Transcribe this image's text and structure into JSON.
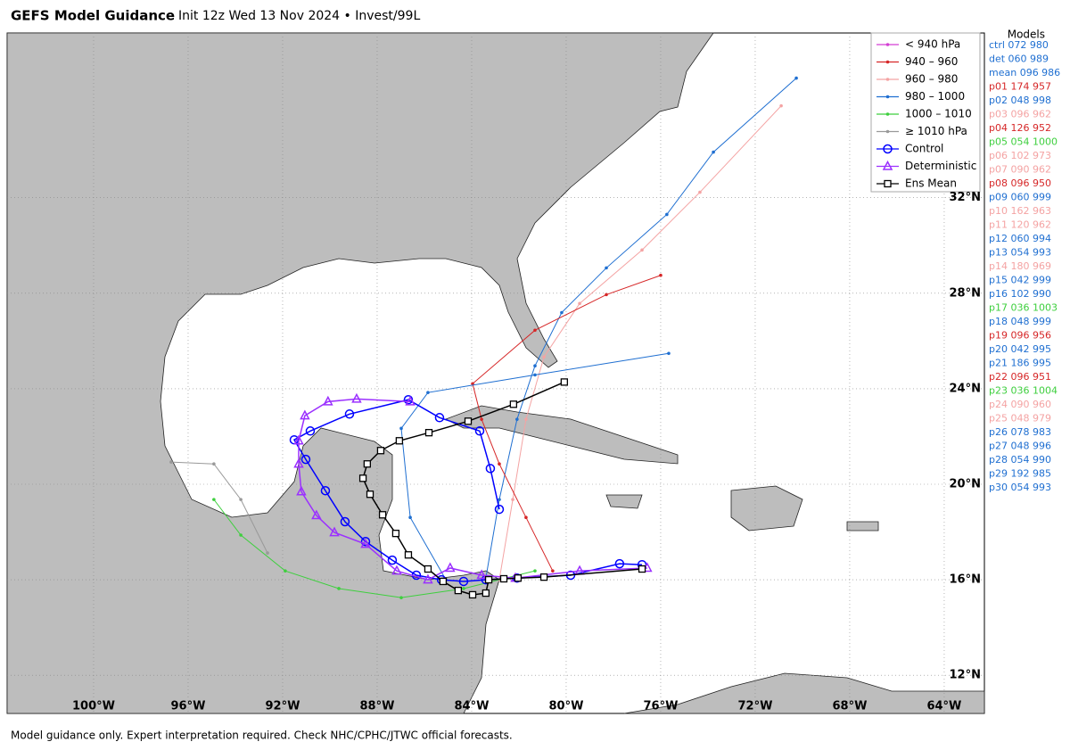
{
  "header": {
    "title": "GEFS Model Guidance",
    "subtitle": "Init 12z Wed 13 Nov 2024 • Invest/99L"
  },
  "footer": "Model guidance only. Expert interpretation required. Check NHC/CPHC/JTWC official forecasts.",
  "chart_data": {
    "type": "track-map",
    "xlim": [
      -103.66,
      -62.3
    ],
    "ylim": [
      10.4,
      38.9
    ],
    "xticks": [
      {
        "value": -100,
        "label": "100°W"
      },
      {
        "value": -96,
        "label": "96°W"
      },
      {
        "value": -92,
        "label": "92°W"
      },
      {
        "value": -88,
        "label": "88°W"
      },
      {
        "value": -84,
        "label": "84°W"
      },
      {
        "value": -80,
        "label": "80°W"
      },
      {
        "value": -76,
        "label": "76°W"
      },
      {
        "value": -72,
        "label": "72°W"
      },
      {
        "value": -68,
        "label": "68°W"
      },
      {
        "value": -64,
        "label": "64°W"
      }
    ],
    "yticks": [
      {
        "value": 12,
        "label": "12°N"
      },
      {
        "value": 16,
        "label": "16°N"
      },
      {
        "value": 20,
        "label": "20°N"
      },
      {
        "value": 24,
        "label": "24°N"
      },
      {
        "value": 28,
        "label": "28°N"
      },
      {
        "value": 32,
        "label": "32°N"
      }
    ],
    "grid": true,
    "tracks": [
      {
        "color": "#1f6fd1",
        "marker": "dot",
        "lon": [
          -83.4,
          -82.83,
          -82.08,
          -81.32,
          -80.19,
          -78.3,
          -75.74,
          -73.77,
          -70.26
        ],
        "lat": [
          16.07,
          19.36,
          22.72,
          24.96,
          27.19,
          29.06,
          31.3,
          33.91,
          37.01
        ]
      },
      {
        "color": "#f4a3a3",
        "marker": "dot",
        "lon": [
          -82.83,
          -82.26,
          -81.7,
          -80.94,
          -79.43,
          -76.79,
          -74.34,
          -70.9
        ],
        "lat": [
          16.0,
          19.36,
          22.72,
          25.33,
          27.57,
          29.81,
          32.23,
          35.85
        ]
      },
      {
        "color": "#d62728",
        "marker": "dot",
        "lon": [
          -80.57,
          -81.7,
          -82.83,
          -83.58,
          -83.96,
          -81.32,
          -78.3,
          -76.0
        ],
        "lat": [
          16.37,
          18.61,
          20.85,
          22.72,
          24.21,
          26.45,
          27.94,
          28.75
        ]
      },
      {
        "color": "#1f6fd1",
        "marker": "dot",
        "lon": [
          -85.09,
          -86.6,
          -86.98,
          -85.85,
          -81.32,
          -75.66
        ],
        "lat": [
          16.0,
          18.61,
          22.34,
          23.84,
          24.58,
          25.48
        ]
      },
      {
        "color": "#3ecf3e",
        "marker": "dot",
        "lon": [
          -81.32,
          -84.34,
          -86.98,
          -89.62,
          -91.89,
          -93.77,
          -94.91
        ],
        "lat": [
          16.37,
          15.63,
          15.25,
          15.63,
          16.37,
          17.87,
          19.36
        ]
      },
      {
        "color": "#999999",
        "marker": "dot",
        "lon": [
          -92.64,
          -93.77,
          -94.91,
          -96.72
        ],
        "lat": [
          17.12,
          19.36,
          20.85,
          20.93
        ]
      },
      {
        "color": "#0000ff",
        "marker": "circle",
        "lon": [
          -76.79,
          -77.74,
          -79.81,
          -82.08,
          -83.4,
          -84.34,
          -85.28,
          -86.34,
          -87.36,
          -88.49,
          -89.36,
          -90.19,
          -91.02,
          -91.51,
          -90.83,
          -89.17,
          -86.68,
          -85.36,
          -83.66,
          -83.21,
          -82.83
        ],
        "lat": [
          16.63,
          16.67,
          16.19,
          16.07,
          16.0,
          15.93,
          16.0,
          16.19,
          16.82,
          17.6,
          18.43,
          19.73,
          21.04,
          21.86,
          22.23,
          22.94,
          23.54,
          22.79,
          22.23,
          20.66,
          18.95
        ]
      },
      {
        "color": "#9b30ff",
        "marker": "triangle",
        "lon": [
          -76.57,
          -79.43,
          -82.15,
          -83.58,
          -84.91,
          -85.85,
          -87.17,
          -88.49,
          -89.81,
          -90.57,
          -91.21,
          -91.32,
          -91.32,
          -91.06,
          -90.08,
          -88.87,
          -86.6
        ],
        "lat": [
          16.49,
          16.37,
          16.07,
          16.19,
          16.49,
          16.0,
          16.37,
          17.49,
          17.98,
          18.69,
          19.69,
          20.85,
          21.82,
          22.87,
          23.46,
          23.57,
          23.46
        ]
      },
      {
        "color": "#000000",
        "marker": "square",
        "lon": [
          -76.79,
          -80.94,
          -82.04,
          -82.64,
          -83.28,
          -83.4,
          -83.96,
          -84.57,
          -85.21,
          -85.85,
          -86.68,
          -87.21,
          -87.77,
          -88.3,
          -88.6,
          -88.42,
          -87.85,
          -87.06,
          -85.81,
          -84.15,
          -82.23,
          -80.08
        ],
        "lat": [
          16.45,
          16.11,
          16.07,
          16.04,
          16.0,
          15.44,
          15.37,
          15.55,
          15.93,
          16.45,
          17.04,
          17.94,
          18.72,
          19.58,
          20.25,
          20.85,
          21.41,
          21.82,
          22.16,
          22.64,
          23.35,
          24.28
        ]
      }
    ]
  },
  "legend": {
    "entries": [
      {
        "label": "< 940 hPa",
        "color": "#d43fd4",
        "marker": "dot"
      },
      {
        "label": "940 – 960",
        "color": "#d62728",
        "marker": "dot"
      },
      {
        "label": "960 – 980",
        "color": "#f4a3a3",
        "marker": "dot"
      },
      {
        "label": "980 – 1000",
        "color": "#1f6fd1",
        "marker": "dot"
      },
      {
        "label": "1000 – 1010",
        "color": "#3ecf3e",
        "marker": "dot"
      },
      {
        "label": "≥ 1010 hPa",
        "color": "#999999",
        "marker": "dot"
      },
      {
        "label": "Control",
        "color": "#0000ff",
        "marker": "circle"
      },
      {
        "label": "Deterministic",
        "color": "#9b30ff",
        "marker": "triangle"
      },
      {
        "label": "Ens Mean",
        "color": "#000000",
        "marker": "square"
      }
    ]
  },
  "models": {
    "title": "Models",
    "entries": [
      {
        "label": "ctrl 072 980",
        "color": "#1f6fd1"
      },
      {
        "label": "det 060 989",
        "color": "#1f6fd1"
      },
      {
        "label": "mean 096 986",
        "color": "#1f6fd1"
      },
      {
        "label": "p01 174 957",
        "color": "#d62728"
      },
      {
        "label": "p02 048 998",
        "color": "#1f6fd1"
      },
      {
        "label": "p03 096 962",
        "color": "#f4a3a3"
      },
      {
        "label": "p04 126 952",
        "color": "#d62728"
      },
      {
        "label": "p05 054 1000",
        "color": "#3ecf3e"
      },
      {
        "label": "p06 102 973",
        "color": "#f4a3a3"
      },
      {
        "label": "p07 090 962",
        "color": "#f4a3a3"
      },
      {
        "label": "p08 096 950",
        "color": "#d62728"
      },
      {
        "label": "p09 060 999",
        "color": "#1f6fd1"
      },
      {
        "label": "p10 162 963",
        "color": "#f4a3a3"
      },
      {
        "label": "p11 120 962",
        "color": "#f4a3a3"
      },
      {
        "label": "p12 060 994",
        "color": "#1f6fd1"
      },
      {
        "label": "p13 054 993",
        "color": "#1f6fd1"
      },
      {
        "label": "p14 180 969",
        "color": "#f4a3a3"
      },
      {
        "label": "p15 042 999",
        "color": "#1f6fd1"
      },
      {
        "label": "p16 102 990",
        "color": "#1f6fd1"
      },
      {
        "label": "p17 036 1003",
        "color": "#3ecf3e"
      },
      {
        "label": "p18 048 999",
        "color": "#1f6fd1"
      },
      {
        "label": "p19 096 956",
        "color": "#d62728"
      },
      {
        "label": "p20 042 995",
        "color": "#1f6fd1"
      },
      {
        "label": "p21 186 995",
        "color": "#1f6fd1"
      },
      {
        "label": "p22 096 951",
        "color": "#d62728"
      },
      {
        "label": "p23 036 1004",
        "color": "#3ecf3e"
      },
      {
        "label": "p24 090 960",
        "color": "#f4a3a3"
      },
      {
        "label": "p25 048 979",
        "color": "#f4a3a3"
      },
      {
        "label": "p26 078 983",
        "color": "#1f6fd1"
      },
      {
        "label": "p27 048 996",
        "color": "#1f6fd1"
      },
      {
        "label": "p28 054 990",
        "color": "#1f6fd1"
      },
      {
        "label": "p29 192 985",
        "color": "#1f6fd1"
      },
      {
        "label": "p30 054 993",
        "color": "#1f6fd1"
      }
    ]
  }
}
